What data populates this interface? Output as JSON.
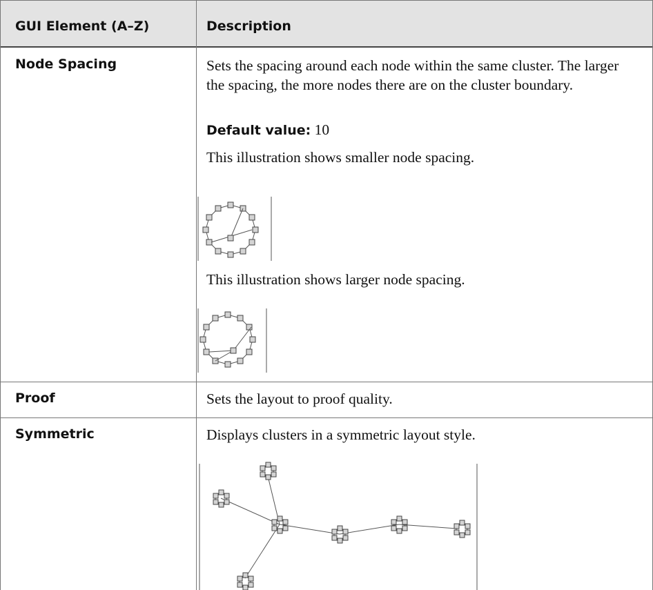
{
  "table": {
    "header": [
      "GUI Element (A–Z)",
      "Description"
    ],
    "rows": [
      {
        "element": "Node Spacing",
        "description": "Sets the spacing around each node within the same cluster. The larger the spacing, the more nodes there are on the cluster boundary.",
        "default_label": "Default value:",
        "default_value": 10,
        "caption_1": "This illustration shows smaller node spacing.",
        "caption_2": "This illustration shows larger node spacing."
      },
      {
        "element": "Proof",
        "description": "Sets the layout to proof quality."
      },
      {
        "element": "Symmetric",
        "description": "Displays clusters in a symmetric layout style."
      }
    ]
  }
}
